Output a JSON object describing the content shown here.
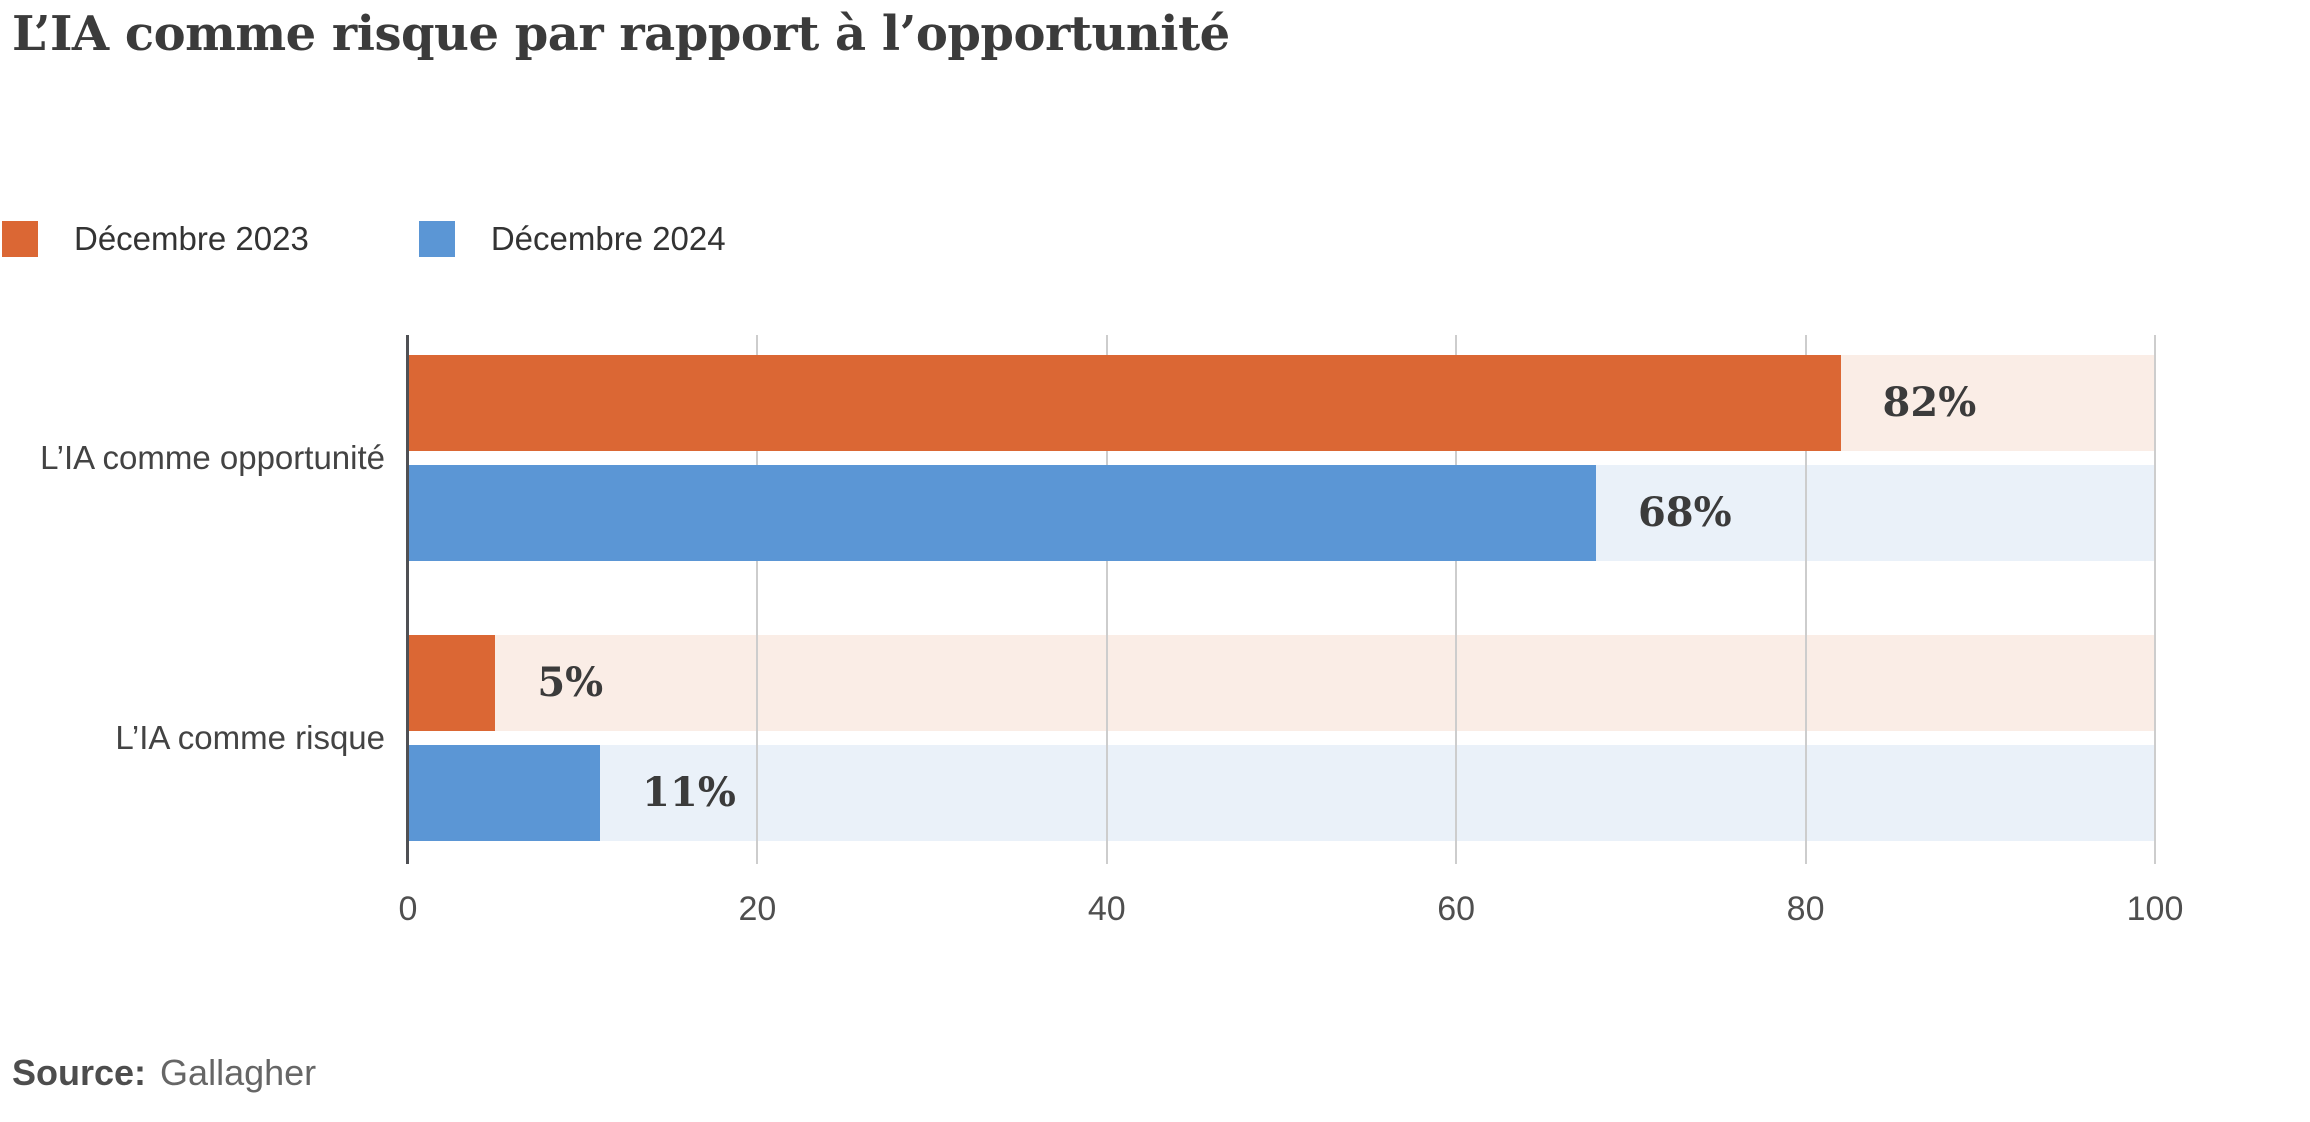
{
  "chart_data": {
    "type": "bar",
    "orientation": "horizontal",
    "title": "L’IA comme risque par rapport à l’opportunité",
    "categories": [
      "L’IA comme opportunité",
      "L’IA comme risque"
    ],
    "series": [
      {
        "name": "Décembre 2023",
        "color": "#DB6734",
        "track_color": "#FAEDE6",
        "values": [
          82,
          5
        ]
      },
      {
        "name": "Décembre 2024",
        "color": "#5B96D5",
        "track_color": "#EAF1F9",
        "values": [
          68,
          11
        ]
      }
    ],
    "value_suffix": "%",
    "data_labels": {
      "decembre_2023": [
        "82%",
        "5%"
      ],
      "decembre_2024": [
        "68%",
        "11%"
      ]
    },
    "xlabel": "",
    "ylabel": "",
    "xlim": [
      0,
      100
    ],
    "x_ticks": [
      "0",
      "20",
      "40",
      "60",
      "80",
      "100"
    ],
    "grid": "vertical-gridlines",
    "legend_position": "top-left"
  },
  "source": {
    "label": "Source:",
    "value": "Gallagher"
  },
  "colors": {
    "title_text": "#3B3B3B",
    "axis_line": "#4F5054",
    "gridline": "#CDCDCD",
    "tick_text": "#4F4F4F",
    "category_text": "#434343",
    "value_text": "#3B3B3B",
    "background": "#FFFFFF"
  }
}
